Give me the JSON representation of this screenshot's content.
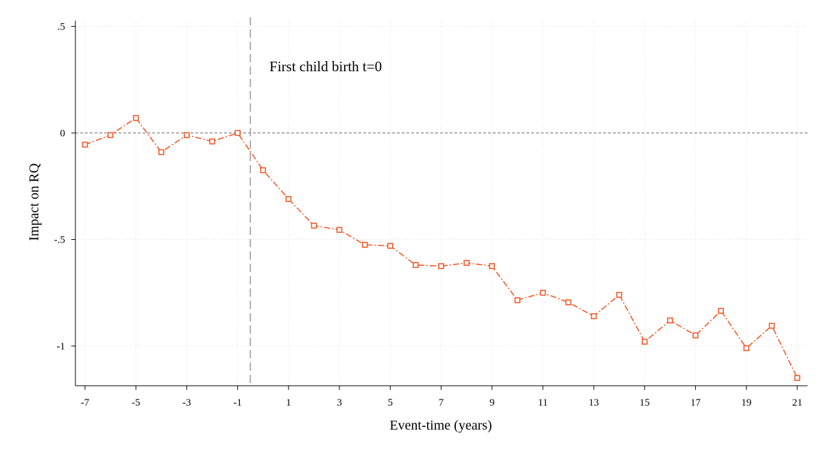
{
  "chart_data": {
    "type": "line",
    "title": "",
    "xlabel": "Event-time (years)",
    "ylabel": "Impact on RQ",
    "xlim": [
      -7,
      21
    ],
    "ylim": [
      -1.2,
      0.5
    ],
    "x_ticks": [
      -7,
      -5,
      -3,
      -1,
      1,
      3,
      5,
      7,
      9,
      11,
      13,
      15,
      17,
      19,
      21
    ],
    "x_tick_labels": [
      "-7",
      "-5",
      "-3",
      "-1",
      "1",
      "3",
      "5",
      "7",
      "9",
      "11",
      "13",
      "15",
      "17",
      "19",
      "21"
    ],
    "y_ticks": [
      0.5,
      0,
      -0.5,
      -1
    ],
    "y_tick_labels": [
      ".5",
      "0",
      "-.5",
      "-1"
    ],
    "grid": true,
    "reference_lines": {
      "horizontal_y": 0,
      "vertical_x": -0.5
    },
    "annotation": {
      "text": "First child birth t=0",
      "x": 0.25,
      "y": 0.29
    },
    "colors": {
      "series": "#f2592a",
      "reference_h": "#7f7f7f",
      "reference_v": "#a6a6a6",
      "grid": "#d9d9d9",
      "axis": "#000000"
    },
    "series": [
      {
        "name": "",
        "marker": "hollow-square",
        "line_style": "dash-dot",
        "x": [
          -7,
          -6,
          -5,
          -4,
          -3,
          -2,
          -1,
          0,
          1,
          2,
          3,
          4,
          5,
          6,
          7,
          8,
          9,
          10,
          11,
          12,
          13,
          14,
          15,
          16,
          17,
          18,
          19,
          20,
          21
        ],
        "values": [
          -0.055,
          -0.01,
          0.07,
          -0.09,
          -0.01,
          -0.04,
          0.0,
          -0.175,
          -0.31,
          -0.435,
          -0.455,
          -0.525,
          -0.53,
          -0.62,
          -0.625,
          -0.61,
          -0.625,
          -0.785,
          -0.75,
          -0.795,
          -0.86,
          -0.76,
          -0.98,
          -0.88,
          -0.95,
          -0.835,
          -1.01,
          -0.905,
          -1.15
        ]
      }
    ]
  }
}
